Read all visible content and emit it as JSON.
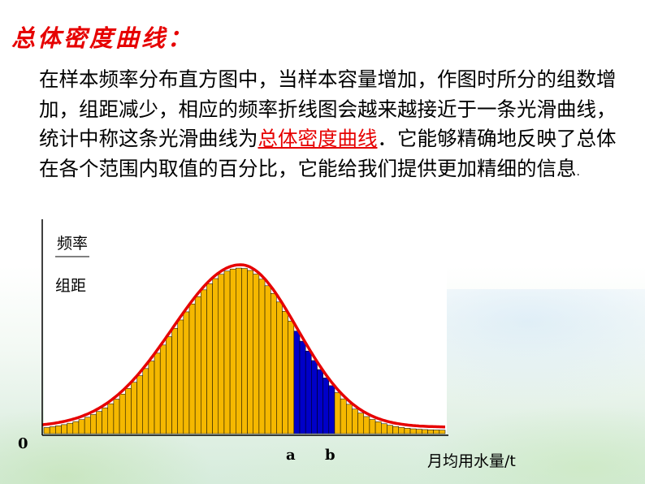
{
  "slide": {
    "title": "总体密度曲线：",
    "paragraph": {
      "part1": "在样本频率分布直方图中，当样本容量增加，作图时所分的组数增加，组距减少，相应的频率折线图会越来越接近于一条光滑曲线，统计中称这条光滑曲线为",
      "highlight": "总体密度曲线",
      "part2": "．它能够精确地反映了总体在各个范围内取值的百分比，它能给我们提供更加精细的信息",
      "end": "."
    }
  },
  "chart_data": {
    "type": "bar",
    "ylabel_top": "频率",
    "ylabel_bottom": "组距",
    "xlabel": "月均用水量/t",
    "origin_label": "0",
    "marker_a": "a",
    "marker_b": "b",
    "bin_count": 69,
    "highlight_range_bins": [
      43,
      49
    ],
    "colors": {
      "bar_fill": "#f5b800",
      "bar_highlight": "#0000c8",
      "curve": "#e60000",
      "plot_background": "#ffffff"
    }
  }
}
